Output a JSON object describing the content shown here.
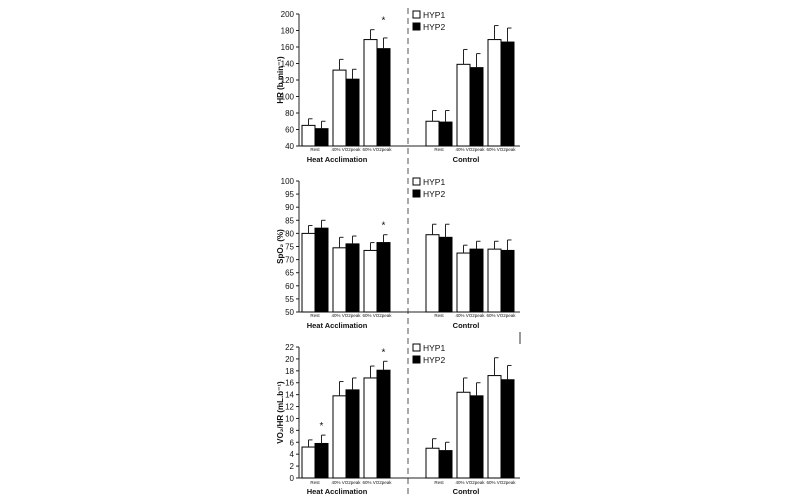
{
  "chart_data": [
    {
      "type": "bar",
      "ylabel": "HR (b.min⁻¹)",
      "ylim": [
        40,
        200
      ],
      "yticks": [
        40,
        60,
        80,
        100,
        120,
        140,
        160,
        180,
        200
      ],
      "groups": [
        "Heat Acclimation",
        "Control"
      ],
      "categories": [
        "Rest",
        "40% VO2peak",
        "60% VO2peak"
      ],
      "legend": [
        "HYP1",
        "HYP2"
      ],
      "series": [
        {
          "name": "HYP1",
          "values": [
            [
              65,
              132,
              169
            ],
            [
              70,
              139,
              169
            ]
          ],
          "errors": [
            [
              8,
              13,
              12
            ],
            [
              13,
              18,
              17
            ]
          ]
        },
        {
          "name": "HYP2",
          "values": [
            [
              61,
              121,
              158
            ],
            [
              69,
              135,
              166
            ]
          ],
          "errors": [
            [
              9,
              12,
              13
            ],
            [
              14,
              17,
              17
            ]
          ]
        }
      ],
      "annotations": [
        {
          "text": "*",
          "group": 0,
          "category": 2
        }
      ]
    },
    {
      "type": "bar",
      "ylabel": "SpO₂ (%)",
      "ylim": [
        50,
        100
      ],
      "yticks": [
        50,
        55,
        60,
        65,
        70,
        75,
        80,
        85,
        90,
        95,
        100
      ],
      "groups": [
        "Heat Acclimation",
        "Control"
      ],
      "categories": [
        "Rest",
        "40% VO2peak",
        "60% VO2peak"
      ],
      "legend": [
        "HYP1",
        "HYP2"
      ],
      "series": [
        {
          "name": "HYP1",
          "values": [
            [
              80,
              74.5,
              73.5
            ],
            [
              79.5,
              72.5,
              74
            ]
          ],
          "errors": [
            [
              3,
              4,
              3
            ],
            [
              4,
              3,
              3
            ]
          ]
        },
        {
          "name": "HYP2",
          "values": [
            [
              82,
              76,
              76.5
            ],
            [
              78.5,
              74,
              73.5
            ]
          ],
          "errors": [
            [
              3,
              3,
              3
            ],
            [
              5,
              3,
              4
            ]
          ]
        }
      ],
      "annotations": [
        {
          "text": "*",
          "group": 0,
          "category": 2
        }
      ]
    },
    {
      "type": "bar",
      "ylabel": "VO₂/HR (mL.b⁻¹)",
      "ylim": [
        0,
        22
      ],
      "yticks": [
        0,
        2,
        4,
        6,
        8,
        10,
        12,
        14,
        16,
        18,
        20,
        22
      ],
      "groups": [
        "Heat Acclimation",
        "Control"
      ],
      "categories": [
        "Rest",
        "40% VO2peak",
        "60% VO2peak"
      ],
      "legend": [
        "HYP1",
        "HYP2"
      ],
      "series": [
        {
          "name": "HYP1",
          "values": [
            [
              5.2,
              13.8,
              16.8
            ],
            [
              5.0,
              14.4,
              17.2
            ]
          ],
          "errors": [
            [
              1.2,
              2.4,
              2.0
            ],
            [
              1.6,
              2.4,
              3.0
            ]
          ]
        },
        {
          "name": "HYP2",
          "values": [
            [
              5.8,
              14.8,
              18.1
            ],
            [
              4.6,
              13.8,
              16.5
            ]
          ],
          "errors": [
            [
              1.4,
              2.0,
              1.5
            ],
            [
              1.4,
              2.2,
              2.4
            ]
          ]
        }
      ],
      "annotations": [
        {
          "text": "*",
          "group": 0,
          "category": 0
        },
        {
          "text": "*",
          "group": 0,
          "category": 2
        }
      ]
    }
  ]
}
